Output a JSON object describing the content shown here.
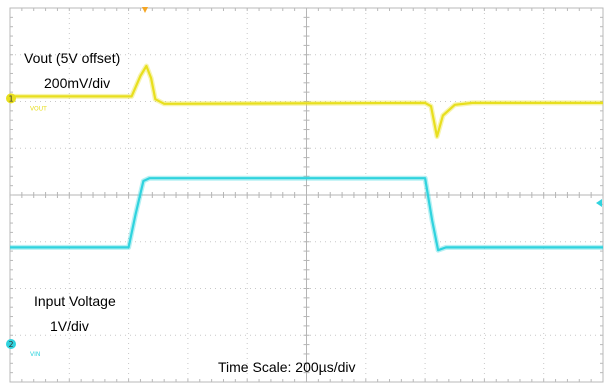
{
  "chart_data": {
    "type": "line",
    "annotations": {
      "vout_title": "Vout  (5V offset)",
      "vout_scale": "200mV/div",
      "vin_title": "Input Voltage",
      "vin_scale": "1V/div",
      "time_scale": "Time Scale: 200µs/div"
    },
    "channel_markers": [
      {
        "number": "1",
        "tag": "VOUT",
        "color": "#e8df1e"
      },
      {
        "number": "2",
        "tag": "VIN",
        "color": "#2fd3de"
      }
    ],
    "grid": {
      "h_divisions": 10,
      "v_divisions": 8,
      "visible": true
    },
    "x": {
      "unit": "div",
      "range": [
        0,
        10
      ]
    },
    "y": {
      "unit": "div",
      "range": [
        -4,
        4
      ]
    },
    "series": [
      {
        "name": "Vout",
        "color": "#e8df1e",
        "x": [
          0,
          2.05,
          2.2,
          2.3,
          2.38,
          2.45,
          2.6,
          7.0,
          7.1,
          7.2,
          7.3,
          7.5,
          7.8,
          10
        ],
        "y": [
          2.11,
          2.11,
          2.55,
          2.76,
          2.5,
          2.05,
          1.95,
          1.97,
          1.9,
          1.25,
          1.7,
          1.93,
          1.97,
          1.97
        ]
      },
      {
        "name": "Vin",
        "color": "#2fd3de",
        "x": [
          0,
          2.0,
          2.12,
          2.25,
          2.35,
          7.0,
          7.12,
          7.22,
          7.35,
          10
        ],
        "y": [
          -1.12,
          -1.12,
          -0.4,
          0.3,
          0.36,
          0.36,
          -0.55,
          -1.18,
          -1.12,
          -1.12
        ]
      }
    ]
  }
}
